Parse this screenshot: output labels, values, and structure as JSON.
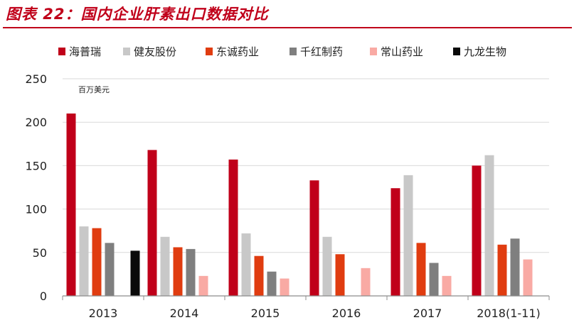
{
  "title": "图表 22：国内企业肝素出口数据对比",
  "chart_data": {
    "type": "bar",
    "title": "图表 22：国内企业肝素出口数据对比",
    "unit_label": "百万美元",
    "xlabel": "",
    "ylabel": "",
    "ylim": [
      0,
      250
    ],
    "yticks": [
      0,
      50,
      100,
      150,
      200,
      250
    ],
    "grid": true,
    "legend_position": "top",
    "categories": [
      "2013",
      "2014",
      "2015",
      "2016",
      "2017",
      "2018(1-11)"
    ],
    "series": [
      {
        "name": "海普瑞",
        "color": "#c0001a",
        "values": [
          210,
          168,
          157,
          133,
          124,
          150
        ]
      },
      {
        "name": "健友股份",
        "color": "#c8c8c8",
        "values": [
          80,
          68,
          72,
          68,
          139,
          162
        ]
      },
      {
        "name": "东诚药业",
        "color": "#e03c10",
        "values": [
          78,
          56,
          46,
          48,
          61,
          59
        ]
      },
      {
        "name": "千红制药",
        "color": "#7f7f7f",
        "values": [
          61,
          54,
          28,
          null,
          38,
          66
        ]
      },
      {
        "name": "常山药业",
        "color": "#f9aaa4",
        "values": [
          null,
          23,
          20,
          32,
          23,
          42
        ]
      },
      {
        "name": "九龙生物",
        "color": "#0a0a0a",
        "values": [
          52,
          null,
          null,
          null,
          null,
          null
        ]
      }
    ]
  }
}
